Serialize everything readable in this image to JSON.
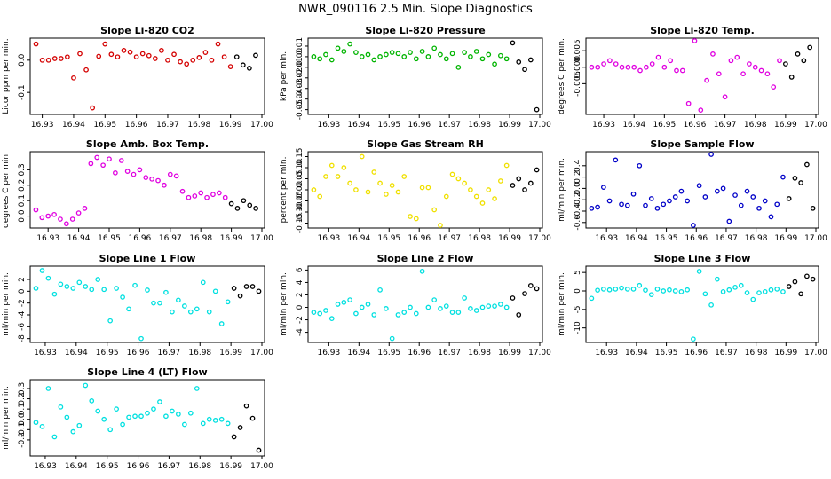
{
  "figure_title": "NWR_090116  2.5 Min. Slope Diagnostics",
  "colors": {
    "recent": "#000000"
  },
  "chart_data": [
    {
      "type": "scatter",
      "title": "Slope Li-820 CO2",
      "ylabel": "Licor ppm per min.",
      "color": "#d40000",
      "xlim": [
        16.927,
        17.0
      ],
      "ylim": [
        -0.16,
        0.06
      ],
      "xticks": [
        "16.93",
        "16.94",
        "16.95",
        "16.96",
        "16.97",
        "16.98",
        "16.99",
        "17.00"
      ],
      "yticks": [
        "-0.1",
        "0.0"
      ],
      "ytick_values": [
        -0.1,
        0.0
      ],
      "x": [
        16.928,
        16.93,
        16.932,
        16.934,
        16.936,
        16.938,
        16.94,
        16.942,
        16.944,
        16.946,
        16.948,
        16.95,
        16.952,
        16.954,
        16.956,
        16.958,
        16.96,
        16.962,
        16.964,
        16.966,
        16.968,
        16.97,
        16.972,
        16.974,
        16.976,
        16.978,
        16.98,
        16.982,
        16.984,
        16.986,
        16.988,
        16.99,
        16.992,
        16.994,
        16.996,
        16.998
      ],
      "y": [
        0.05,
        0.0,
        0.0,
        0.005,
        0.005,
        0.01,
        -0.055,
        0.02,
        -0.03,
        -0.148,
        0.012,
        0.05,
        0.018,
        0.01,
        0.03,
        0.025,
        0.01,
        0.02,
        0.014,
        0.005,
        0.03,
        0.0,
        0.018,
        -0.005,
        -0.012,
        0.0,
        0.008,
        0.024,
        0.0,
        0.05,
        0.01,
        -0.02,
        0.01,
        -0.015,
        -0.025,
        0.015
      ],
      "recent_from": 32
    },
    {
      "type": "scatter",
      "title": "Slope Li-820 Pressure",
      "ylabel": "kPa per min.",
      "color": "#00b400",
      "xlim": [
        16.924,
        17.0
      ],
      "ylim": [
        -0.052,
        0.015
      ],
      "xticks": [
        "16.93",
        "16.94",
        "16.95",
        "16.96",
        "16.97",
        "16.98",
        "16.99",
        "17.00"
      ],
      "yticks": [
        "-0.05",
        "-0.04",
        "-0.03",
        "-0.02",
        "-0.01",
        "0.00",
        "0.01"
      ],
      "ytick_values": [
        -0.05,
        -0.04,
        -0.03,
        -0.02,
        -0.01,
        0.0,
        0.01
      ],
      "x": [
        16.925,
        16.927,
        16.929,
        16.931,
        16.933,
        16.935,
        16.937,
        16.939,
        16.941,
        16.943,
        16.945,
        16.947,
        16.949,
        16.951,
        16.953,
        16.955,
        16.957,
        16.959,
        16.961,
        16.963,
        16.965,
        16.967,
        16.969,
        16.971,
        16.973,
        16.975,
        16.977,
        16.979,
        16.981,
        16.983,
        16.985,
        16.987,
        16.989,
        16.991,
        16.993,
        16.995,
        16.997,
        16.999
      ],
      "y": [
        0.0,
        -0.002,
        0.002,
        -0.003,
        0.008,
        0.005,
        0.012,
        0.004,
        0.0,
        0.002,
        -0.003,
        0.0,
        0.002,
        0.004,
        0.003,
        0.0,
        0.004,
        -0.002,
        0.005,
        0.0,
        0.008,
        0.002,
        -0.002,
        0.003,
        -0.01,
        0.004,
        0.0,
        0.005,
        -0.002,
        0.002,
        -0.007,
        0.001,
        -0.002,
        0.013,
        -0.005,
        -0.012,
        -0.003,
        -0.05
      ],
      "recent_from": 33
    },
    {
      "type": "scatter",
      "title": "Slope Li-820 Temp.",
      "ylabel": "degrees C per min.",
      "color": "#e000e0",
      "xlim": [
        16.925,
        17.0
      ],
      "ylim": [
        -0.0135,
        0.008
      ],
      "xticks": [
        "16.93",
        "16.94",
        "16.95",
        "16.96",
        "16.97",
        "16.98",
        "16.99",
        "17.00"
      ],
      "yticks": [
        "-0.005",
        "0.000",
        "0.005"
      ],
      "ytick_values": [
        -0.005,
        0.0,
        0.005
      ],
      "x": [
        16.926,
        16.928,
        16.93,
        16.932,
        16.934,
        16.936,
        16.938,
        16.94,
        16.942,
        16.944,
        16.946,
        16.948,
        16.95,
        16.952,
        16.954,
        16.956,
        16.958,
        16.96,
        16.962,
        16.964,
        16.966,
        16.968,
        16.97,
        16.972,
        16.974,
        16.976,
        16.978,
        16.98,
        16.982,
        16.984,
        16.986,
        16.988,
        16.99,
        16.992,
        16.994,
        16.996,
        16.998
      ],
      "y": [
        0.0,
        0.0,
        0.001,
        0.002,
        0.001,
        0.0,
        0.0,
        0.0,
        -0.001,
        0.0,
        0.001,
        0.003,
        0.0,
        0.002,
        -0.001,
        -0.001,
        -0.011,
        0.008,
        -0.013,
        -0.004,
        0.004,
        -0.002,
        -0.009,
        0.002,
        0.003,
        -0.002,
        0.001,
        0.0,
        -0.001,
        -0.002,
        -0.006,
        0.002,
        0.001,
        -0.003,
        0.004,
        0.002,
        0.006
      ],
      "recent_from": 32
    },
    {
      "type": "scatter",
      "title": "Slope Amb. Box Temp.",
      "ylabel": "degrees C per min.",
      "color": "#e000e0",
      "xlim": [
        16.925,
        17.0
      ],
      "ylim": [
        -0.06,
        0.4
      ],
      "xticks": [
        "16.93",
        "16.94",
        "16.95",
        "16.96",
        "16.97",
        "16.98",
        "16.99",
        "17.00"
      ],
      "yticks": [
        "0.0",
        "0.1",
        "0.2",
        "0.3"
      ],
      "ytick_values": [
        0.0,
        0.1,
        0.2,
        0.3
      ],
      "x": [
        16.926,
        16.928,
        16.93,
        16.932,
        16.934,
        16.936,
        16.938,
        16.94,
        16.942,
        16.944,
        16.946,
        16.948,
        16.95,
        16.952,
        16.954,
        16.956,
        16.958,
        16.96,
        16.962,
        16.964,
        16.966,
        16.968,
        16.97,
        16.972,
        16.974,
        16.976,
        16.978,
        16.98,
        16.982,
        16.984,
        16.986,
        16.988,
        16.99,
        16.992,
        16.994,
        16.996,
        16.998
      ],
      "y": [
        0.04,
        -0.01,
        0.0,
        0.01,
        -0.02,
        -0.05,
        -0.02,
        0.02,
        0.05,
        0.34,
        0.38,
        0.33,
        0.37,
        0.28,
        0.36,
        0.29,
        0.27,
        0.3,
        0.25,
        0.24,
        0.23,
        0.2,
        0.27,
        0.26,
        0.16,
        0.12,
        0.13,
        0.15,
        0.12,
        0.14,
        0.15,
        0.12,
        0.08,
        0.05,
        0.1,
        0.07,
        0.05
      ],
      "recent_from": 32
    },
    {
      "type": "scatter",
      "title": "Slope Gas Stream RH",
      "ylabel": "percent per min.",
      "color": "#f0e000",
      "xlim": [
        16.924,
        17.0
      ],
      "ylim": [
        -0.16,
        0.16
      ],
      "xticks": [
        "16.93",
        "16.94",
        "16.95",
        "16.96",
        "16.97",
        "16.98",
        "16.99",
        "17.00"
      ],
      "yticks": [
        "-0.15",
        "-0.10",
        "-0.05",
        "0.00",
        "0.05",
        "0.10",
        "0.15"
      ],
      "ytick_values": [
        -0.15,
        -0.1,
        -0.05,
        0.0,
        0.05,
        0.1,
        0.15
      ],
      "x": [
        16.925,
        16.927,
        16.929,
        16.931,
        16.933,
        16.935,
        16.937,
        16.939,
        16.941,
        16.943,
        16.945,
        16.947,
        16.949,
        16.951,
        16.953,
        16.955,
        16.957,
        16.959,
        16.961,
        16.963,
        16.965,
        16.967,
        16.969,
        16.971,
        16.973,
        16.975,
        16.977,
        16.979,
        16.981,
        16.983,
        16.985,
        16.987,
        16.989,
        16.991,
        16.993,
        16.995,
        16.997,
        16.999
      ],
      "y": [
        0.0,
        -0.03,
        0.06,
        0.11,
        0.06,
        0.1,
        0.03,
        0.0,
        0.15,
        -0.01,
        0.08,
        0.03,
        -0.02,
        0.02,
        -0.01,
        0.06,
        -0.12,
        -0.13,
        0.01,
        0.01,
        -0.09,
        -0.16,
        -0.03,
        0.07,
        0.05,
        0.03,
        0.0,
        -0.03,
        -0.06,
        0.0,
        -0.04,
        0.04,
        0.11,
        0.02,
        0.05,
        0.0,
        0.03,
        0.09
      ],
      "recent_from": 33
    },
    {
      "type": "scatter",
      "title": "Slope Sample Flow",
      "ylabel": "ml/min per min.",
      "color": "#0000c8",
      "xlim": [
        16.924,
        17.0
      ],
      "ylim": [
        -0.65,
        0.6
      ],
      "xticks": [
        "16.93",
        "16.94",
        "16.95",
        "16.96",
        "16.97",
        "16.98",
        "16.99",
        "17.00"
      ],
      "yticks": [
        "-0.6",
        "-0.4",
        "-0.2",
        "0.0",
        "0.2",
        "0.4"
      ],
      "ytick_values": [
        -0.6,
        -0.4,
        -0.2,
        0.0,
        0.2,
        0.4
      ],
      "x": [
        16.925,
        16.927,
        16.929,
        16.931,
        16.933,
        16.935,
        16.937,
        16.939,
        16.941,
        16.943,
        16.945,
        16.947,
        16.949,
        16.951,
        16.953,
        16.955,
        16.957,
        16.959,
        16.961,
        16.963,
        16.965,
        16.967,
        16.969,
        16.971,
        16.973,
        16.975,
        16.977,
        16.979,
        16.981,
        16.983,
        16.985,
        16.987,
        16.989,
        16.991,
        16.993,
        16.995,
        16.997,
        16.999
      ],
      "y": [
        -0.35,
        -0.33,
        0.02,
        -0.22,
        0.5,
        -0.28,
        -0.3,
        -0.1,
        0.4,
        -0.3,
        -0.18,
        -0.35,
        -0.28,
        -0.22,
        -0.15,
        -0.05,
        -0.22,
        -0.65,
        0.05,
        -0.15,
        0.6,
        -0.05,
        0.0,
        -0.58,
        -0.12,
        -0.3,
        -0.05,
        -0.15,
        -0.35,
        -0.22,
        -0.5,
        -0.28,
        0.2,
        -0.18,
        0.18,
        0.1,
        0.42,
        -0.35
      ],
      "recent_from": 33
    },
    {
      "type": "scatter",
      "title": "Slope Line 1 Flow",
      "ylabel": "ml/min per min.",
      "color": "#00e0e0",
      "xlim": [
        16.926,
        17.0
      ],
      "ylim": [
        -8.2,
        3.8
      ],
      "xticks": [
        "16.93",
        "16.94",
        "16.95",
        "16.96",
        "16.97",
        "16.98",
        "16.99",
        "17.00"
      ],
      "yticks": [
        "-8",
        "-6",
        "-4",
        "-2",
        "0",
        "2"
      ],
      "ytick_values": [
        -8,
        -6,
        -4,
        -2,
        0,
        2
      ],
      "x": [
        16.927,
        16.929,
        16.931,
        16.933,
        16.935,
        16.937,
        16.939,
        16.941,
        16.943,
        16.945,
        16.947,
        16.949,
        16.951,
        16.953,
        16.955,
        16.957,
        16.959,
        16.961,
        16.963,
        16.965,
        16.967,
        16.969,
        16.971,
        16.973,
        16.975,
        16.977,
        16.979,
        16.981,
        16.983,
        16.985,
        16.987,
        16.989,
        16.991,
        16.993,
        16.995,
        16.997,
        16.999
      ],
      "y": [
        0.5,
        3.5,
        2.2,
        -0.5,
        1.2,
        0.8,
        0.5,
        1.5,
        0.8,
        0.3,
        2,
        0.3,
        -5,
        0.5,
        -1,
        -3,
        1,
        -8,
        0.2,
        -2,
        -2,
        -0.2,
        -3.5,
        -1.5,
        -2.5,
        -3.5,
        -3,
        1.5,
        -3.5,
        0,
        -5.5,
        -1.8,
        0.5,
        -0.8,
        0.8,
        0.8,
        0
      ],
      "recent_from": 32
    },
    {
      "type": "scatter",
      "title": "Slope Line 2 Flow",
      "ylabel": "ml/min per min.",
      "color": "#00e0e0",
      "xlim": [
        16.924,
        17.0
      ],
      "ylim": [
        -5.2,
        6.2
      ],
      "xticks": [
        "16.93",
        "16.94",
        "16.95",
        "16.96",
        "16.97",
        "16.98",
        "16.99",
        "17.00"
      ],
      "yticks": [
        "-4",
        "-2",
        "0",
        "2",
        "4",
        "6"
      ],
      "ytick_values": [
        -4,
        -2,
        0,
        2,
        4,
        6
      ],
      "x": [
        16.925,
        16.927,
        16.929,
        16.931,
        16.933,
        16.935,
        16.937,
        16.939,
        16.941,
        16.943,
        16.945,
        16.947,
        16.949,
        16.951,
        16.953,
        16.955,
        16.957,
        16.959,
        16.961,
        16.963,
        16.965,
        16.967,
        16.969,
        16.971,
        16.973,
        16.975,
        16.977,
        16.979,
        16.981,
        16.983,
        16.985,
        16.987,
        16.989,
        16.991,
        16.993,
        16.995,
        16.997,
        16.999
      ],
      "y": [
        -0.8,
        -1,
        -0.5,
        -1.8,
        0.5,
        0.8,
        1.2,
        -1,
        0,
        0.5,
        -1.2,
        2.8,
        -0.2,
        -5,
        -1.2,
        -0.8,
        0,
        -1,
        5.8,
        0,
        1.2,
        -0.2,
        0.2,
        -0.8,
        -0.8,
        1.5,
        -0.2,
        -0.5,
        0,
        0.2,
        0.2,
        0.5,
        0,
        1.5,
        -1.2,
        2.2,
        3.5,
        3
      ],
      "recent_from": 33
    },
    {
      "type": "scatter",
      "title": "Slope Line 3 Flow",
      "ylabel": "ml/min per min.",
      "color": "#00e0e0",
      "xlim": [
        16.924,
        17.0
      ],
      "ylim": [
        -13.2,
        6.0
      ],
      "xticks": [
        "16.93",
        "16.94",
        "16.95",
        "16.96",
        "16.97",
        "16.98",
        "16.99",
        "17.00"
      ],
      "yticks": [
        "-10",
        "-5",
        "0",
        "5"
      ],
      "ytick_values": [
        -10,
        -5,
        0,
        5
      ],
      "x": [
        16.925,
        16.927,
        16.929,
        16.931,
        16.933,
        16.935,
        16.937,
        16.939,
        16.941,
        16.943,
        16.945,
        16.947,
        16.949,
        16.951,
        16.953,
        16.955,
        16.957,
        16.959,
        16.961,
        16.963,
        16.965,
        16.967,
        16.969,
        16.971,
        16.973,
        16.975,
        16.977,
        16.979,
        16.981,
        16.983,
        16.985,
        16.987,
        16.989,
        16.991,
        16.993,
        16.995,
        16.997,
        16.999
      ],
      "y": [
        -2,
        0.2,
        0.5,
        0.3,
        0.5,
        0.8,
        0.5,
        0.5,
        1.5,
        0.2,
        -1,
        0.5,
        0,
        0.3,
        0,
        -0.2,
        0.3,
        -13,
        5.3,
        -0.8,
        -3.8,
        3.2,
        -0.2,
        0.3,
        1,
        1.5,
        -0.5,
        -2.3,
        -0.5,
        -0.2,
        0.3,
        0.5,
        -0.2,
        1.2,
        2.5,
        -0.8,
        4,
        3.2
      ],
      "recent_from": 33
    },
    {
      "type": "scatter",
      "title": "Slope Line 4 (LT) Flow",
      "ylabel": "ml/min per min.",
      "color": "#00e0e0",
      "xlim": [
        16.926,
        17.0
      ],
      "ylim": [
        -0.33,
        0.36
      ],
      "xticks": [
        "16.93",
        "16.94",
        "16.95",
        "16.96",
        "16.97",
        "16.98",
        "16.99",
        "17.00"
      ],
      "yticks": [
        "-0.2",
        "-0.1",
        "0.0",
        "0.1",
        "0.2",
        "0.3"
      ],
      "ytick_values": [
        -0.2,
        -0.1,
        0.0,
        0.1,
        0.2,
        0.3
      ],
      "x": [
        16.927,
        16.929,
        16.931,
        16.933,
        16.935,
        16.937,
        16.939,
        16.941,
        16.943,
        16.945,
        16.947,
        16.949,
        16.951,
        16.953,
        16.955,
        16.957,
        16.959,
        16.961,
        16.963,
        16.965,
        16.967,
        16.969,
        16.971,
        16.973,
        16.975,
        16.977,
        16.979,
        16.981,
        16.983,
        16.985,
        16.987,
        16.989,
        16.991,
        16.993,
        16.995,
        16.997,
        16.999
      ],
      "y": [
        -0.03,
        -0.07,
        0.3,
        -0.17,
        0.12,
        0.02,
        -0.12,
        -0.06,
        0.33,
        0.18,
        0.08,
        0.0,
        -0.1,
        0.1,
        -0.05,
        0.02,
        0.03,
        0.03,
        0.06,
        0.1,
        0.17,
        0.03,
        0.08,
        0.05,
        -0.05,
        0.06,
        0.3,
        -0.04,
        0.0,
        -0.01,
        0.0,
        -0.04,
        -0.17,
        -0.08,
        0.13,
        0.01,
        -0.3
      ],
      "recent_from": 32
    }
  ]
}
